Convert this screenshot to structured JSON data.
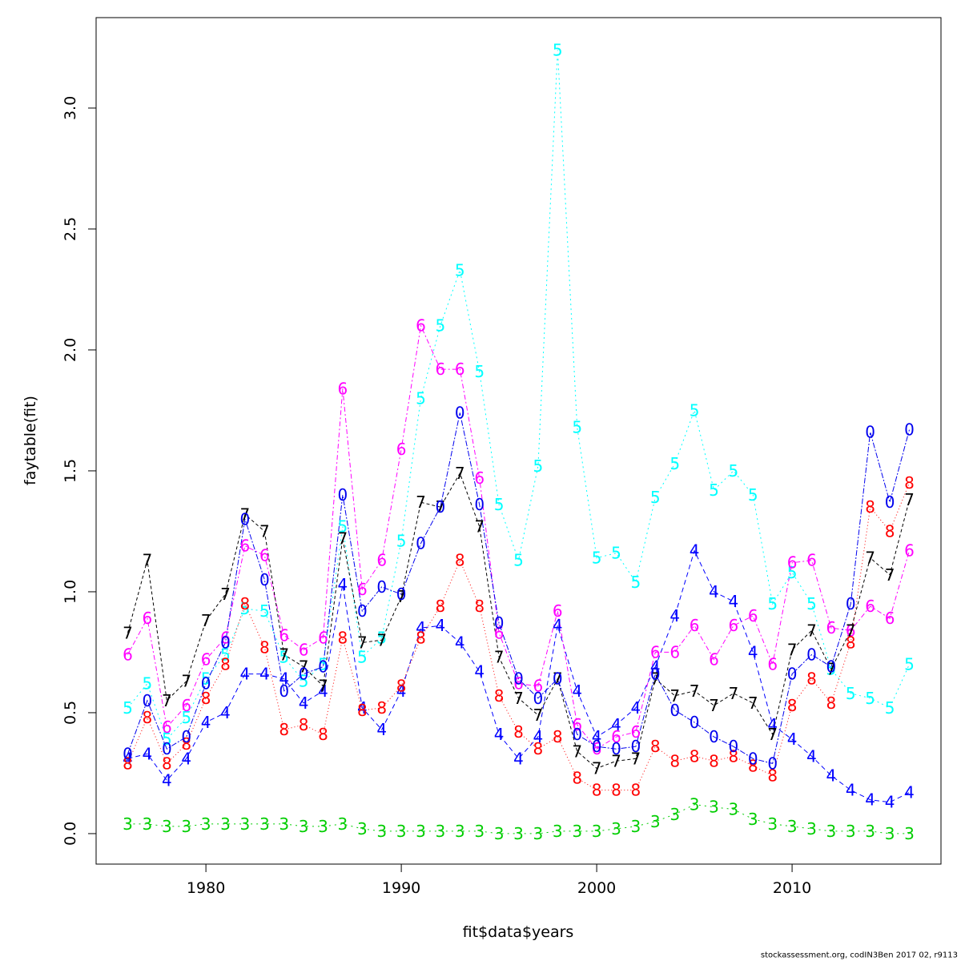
{
  "chart_data": {
    "type": "line",
    "xlabel": "fit$data$years",
    "ylabel": "faytable(fit)",
    "footnote": "stockassessment.org, codIN3Ben 2017 02, r9113",
    "x": [
      1976,
      1977,
      1978,
      1979,
      1980,
      1981,
      1982,
      1983,
      1984,
      1985,
      1986,
      1987,
      1988,
      1989,
      1990,
      1991,
      1992,
      1993,
      1994,
      1995,
      1996,
      1997,
      1998,
      1999,
      2000,
      2001,
      2002,
      2003,
      2004,
      2005,
      2006,
      2007,
      2008,
      2009,
      2010,
      2011,
      2012,
      2013,
      2014,
      2015,
      2016
    ],
    "xlim": [
      1974.38,
      2017.62
    ],
    "xticks": [
      1980,
      1990,
      2000,
      2010
    ],
    "ylim": [
      -0.126,
      3.374
    ],
    "yticks": [
      {
        "value": 0,
        "label": "0.0"
      },
      0.5,
      {
        "value": 1,
        "label": "1.0"
      },
      1.5,
      {
        "value": 2,
        "label": "2.0"
      },
      2.5,
      {
        "value": 3,
        "label": "3.0"
      }
    ],
    "series": [
      {
        "name": "3",
        "color": "#00cd00",
        "values": [
          0.04,
          0.04,
          0.03,
          0.03,
          0.04,
          0.04,
          0.04,
          0.04,
          0.04,
          0.03,
          0.03,
          0.04,
          0.02,
          0.01,
          0.01,
          0.01,
          0.01,
          0.01,
          0.01,
          0,
          0,
          0,
          0.01,
          0.01,
          0.01,
          0.02,
          0.03,
          0.05,
          0.08,
          0.12,
          0.11,
          0.1,
          0.06,
          0.04,
          0.03,
          0.02,
          0.01,
          0.01,
          0.01,
          0,
          0
        ]
      },
      {
        "name": "4",
        "color": "#0000ff",
        "values": [
          0.31,
          0.33,
          0.22,
          0.31,
          0.46,
          0.5,
          0.66,
          0.66,
          0.64,
          0.54,
          0.59,
          1.03,
          0.52,
          0.43,
          0.59,
          0.85,
          0.86,
          0.79,
          0.67,
          0.41,
          0.31,
          0.4,
          0.86,
          0.59,
          0.4,
          0.45,
          0.52,
          0.69,
          0.9,
          1.17,
          1.0,
          0.96,
          0.75,
          0.45,
          0.39,
          0.32,
          0.24,
          0.18,
          0.14,
          0.13,
          0.17
        ]
      },
      {
        "name": "5",
        "color": "#00ffff",
        "values": [
          0.52,
          0.62,
          0.39,
          0.48,
          0.64,
          0.74,
          0.93,
          0.92,
          0.73,
          0.63,
          0.7,
          1.27,
          0.73,
          0.81,
          1.21,
          1.8,
          2.1,
          2.33,
          1.91,
          1.36,
          1.13,
          1.52,
          3.24,
          1.68,
          1.14,
          1.16,
          1.04,
          1.39,
          1.53,
          1.75,
          1.42,
          1.5,
          1.4,
          0.95,
          1.08,
          0.95,
          0.68,
          0.58,
          0.56,
          0.52,
          0.7
        ]
      },
      {
        "name": "6",
        "color": "#ff00ff",
        "values": [
          0.74,
          0.89,
          0.44,
          0.53,
          0.72,
          0.81,
          1.19,
          1.15,
          0.82,
          0.76,
          0.81,
          1.84,
          1.01,
          1.13,
          1.59,
          2.1,
          1.92,
          1.92,
          1.47,
          0.83,
          0.62,
          0.61,
          0.92,
          0.45,
          0.35,
          0.4,
          0.42,
          0.75,
          0.75,
          0.86,
          0.72,
          0.86,
          0.9,
          0.7,
          1.12,
          1.13,
          0.85,
          0.84,
          0.94,
          0.89,
          1.17
        ]
      },
      {
        "name": "7",
        "color": "#000000",
        "values": [
          0.83,
          1.13,
          0.55,
          0.63,
          0.88,
          0.99,
          1.32,
          1.25,
          0.74,
          0.69,
          0.61,
          1.22,
          0.79,
          0.8,
          0.98,
          1.37,
          1.35,
          1.49,
          1.27,
          0.73,
          0.56,
          0.49,
          0.64,
          0.34,
          0.27,
          0.3,
          0.31,
          0.64,
          0.57,
          0.59,
          0.53,
          0.58,
          0.54,
          0.41,
          0.76,
          0.84,
          0.68,
          0.84,
          1.14,
          1.07,
          1.38
        ]
      },
      {
        "name": "8",
        "color": "#ff0000",
        "values": [
          0.29,
          0.48,
          0.29,
          0.37,
          0.56,
          0.7,
          0.95,
          0.77,
          0.43,
          0.45,
          0.41,
          0.81,
          0.51,
          0.52,
          0.61,
          0.81,
          0.94,
          1.13,
          0.94,
          0.57,
          0.42,
          0.35,
          0.4,
          0.23,
          0.18,
          0.18,
          0.18,
          0.36,
          0.3,
          0.32,
          0.3,
          0.32,
          0.28,
          0.24,
          0.53,
          0.64,
          0.54,
          0.79,
          1.35,
          1.25,
          1.45
        ]
      },
      {
        "name": "0",
        "color": "#0000ee",
        "values": [
          0.33,
          0.55,
          0.35,
          0.4,
          0.62,
          0.79,
          1.3,
          1.05,
          0.59,
          0.66,
          0.69,
          1.4,
          0.92,
          1.02,
          0.99,
          1.2,
          1.35,
          1.74,
          1.36,
          0.87,
          0.64,
          0.56,
          0.64,
          0.41,
          0.36,
          0.35,
          0.36,
          0.66,
          0.51,
          0.46,
          0.4,
          0.36,
          0.31,
          0.29,
          0.66,
          0.74,
          0.69,
          0.95,
          1.66,
          1.37,
          1.67
        ]
      }
    ]
  }
}
